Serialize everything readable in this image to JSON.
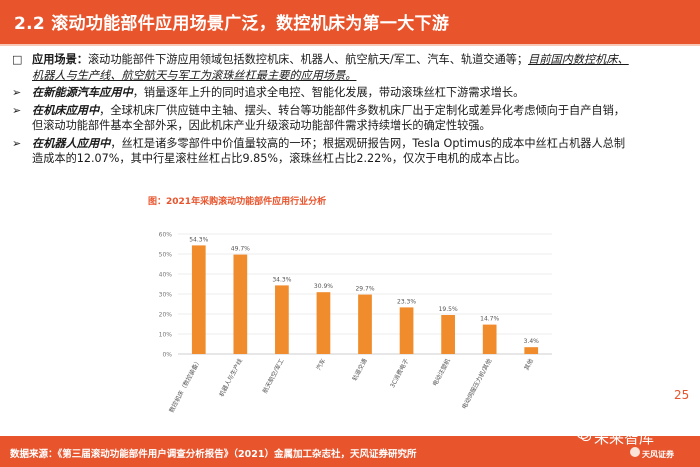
{
  "header": {
    "title": "2.2 滚动功能部件应用场景广泛，数控机床为第一大下游"
  },
  "bullets": [
    {
      "mark": "□",
      "key": "应用场景：",
      "line1_text": "滚动功能部件下游应用领域包括数控机床、机器人、航空航天/军工、汽车、轨道交通等；",
      "line1_emph": "目前国内数控机床、",
      "line2_emph": "机器人与生产线、航空航天与军工为滚珠丝杠最主要的应用场景。"
    },
    {
      "mark": "➢",
      "key": "在新能源汽车应用中",
      "text": "，销量逐年上升的同时追求全电控、智能化发展，带动滚珠丝杠下游需求增长。"
    },
    {
      "mark": "➢",
      "key": "在机床应用中",
      "line1_text": "，全球机床厂供应链中主轴、摆头、转台等功能部件多数机床厂出于定制化或差异化考虑倾向于自产自销，",
      "line2_text": "但滚动功能部件基本全部外采，因此机床产业升级滚动功能部件需求持续增长的确定性较强。"
    },
    {
      "mark": "➢",
      "key": "在机器人应用中",
      "line1_text": "，丝杠是诸多零部件中价值量较高的一环；根据观研报告网，Tesla Optimus的成本中丝杠占机器人总制",
      "line2_text": "造成本的12.07%，其中行星滚柱丝杠占比9.85%，滚珠丝杠占比2.22%，仅次于电机的成本占比。"
    }
  ],
  "chart_data": {
    "type": "bar",
    "title_prefix": "图：",
    "title": "2021年采购滚动功能部件应用行业分析",
    "categories": [
      "数控机床（数控装备）",
      "机器人与生产线",
      "航天航空/军工",
      "汽车",
      "轨道交通",
      "3C消费电子",
      "电动注塑机",
      "电动伺服压力机/其他",
      "其他"
    ],
    "values": [
      54.3,
      49.7,
      34.3,
      30.9,
      29.7,
      23.3,
      19.5,
      14.7,
      3.4
    ],
    "value_labels": [
      "54.3%",
      "49.7%",
      "34.3%",
      "30.9%",
      "29.7%",
      "23.3%",
      "19.5%",
      "14.7%",
      "3.4%"
    ],
    "yticks": [
      "0%",
      "10%",
      "20%",
      "30%",
      "40%",
      "50%",
      "60%"
    ],
    "ylim": [
      0,
      60
    ],
    "bar_color": "#f08c2b",
    "grid": true
  },
  "footer": {
    "source": "数据来源：《第三届滚动功能部件用户调查分析报告》（2021）金属加工杂志社，天风证券研究所",
    "watermark": "未来智库",
    "brand": "天风证券",
    "page": "25"
  },
  "colors": {
    "accent": "#e8542c",
    "bar": "#f08c2b"
  }
}
